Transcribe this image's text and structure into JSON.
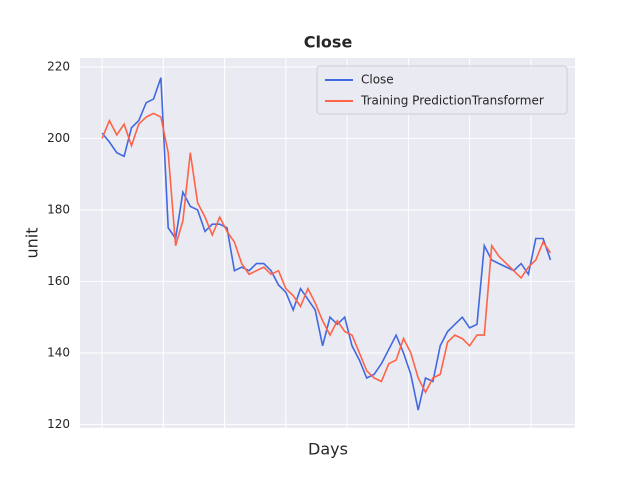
{
  "chart_data": {
    "type": "line",
    "title": "Close",
    "x_label": "Days",
    "y_label": "unit",
    "x": [
      0,
      3,
      6,
      9,
      12,
      15,
      18,
      21,
      24,
      27,
      30,
      33,
      36,
      39,
      42,
      45,
      48,
      51,
      54,
      57,
      60,
      63,
      66,
      69,
      72,
      75,
      78,
      81,
      84,
      87,
      90,
      93,
      96,
      99,
      102,
      105,
      108,
      111,
      114,
      117,
      120,
      123,
      126,
      129,
      132,
      135,
      138,
      141,
      144,
      147,
      150,
      153,
      156,
      159,
      162,
      165,
      168,
      171,
      174,
      177,
      180,
      183
    ],
    "series": [
      {
        "name": "Close",
        "color": "#4169e1",
        "values": [
          201.5,
          199,
          196,
          195,
          203,
          205,
          210,
          211,
          217,
          175,
          172,
          185,
          181,
          180,
          174,
          176,
          176,
          175,
          163,
          164,
          163,
          165,
          165,
          163,
          159,
          157,
          152,
          158,
          155,
          152,
          142,
          150,
          148,
          150,
          142,
          138,
          133,
          134,
          137,
          141,
          145,
          140,
          134,
          124,
          133,
          132,
          142,
          146,
          148,
          150,
          147,
          148,
          170,
          166,
          165,
          164,
          163,
          165,
          162,
          172,
          172,
          166
        ]
      },
      {
        "name": "Training PredictionTransformer",
        "color": "#ff6347",
        "values": [
          200,
          205,
          201,
          204,
          198,
          204,
          206,
          207,
          206,
          196,
          170,
          177,
          196,
          182,
          178,
          173,
          178,
          174,
          171,
          165,
          162,
          163,
          164,
          162,
          163,
          158,
          156,
          153,
          158,
          154,
          149,
          145,
          149,
          146,
          145,
          140,
          135,
          133,
          132,
          137,
          138,
          144,
          140,
          133,
          129,
          133,
          134,
          143,
          145,
          144,
          142,
          145,
          145,
          170,
          167,
          165,
          163,
          161,
          164,
          166,
          171,
          168
        ]
      }
    ],
    "xlim": [
      -9,
      193
    ],
    "xticks": [
      0,
      25,
      50,
      75,
      100,
      125,
      150,
      175
    ],
    "ylim": [
      119,
      222.5
    ],
    "yticks": [
      120,
      140,
      160,
      180,
      200,
      220
    ],
    "grid": true,
    "legend": "upper right"
  }
}
